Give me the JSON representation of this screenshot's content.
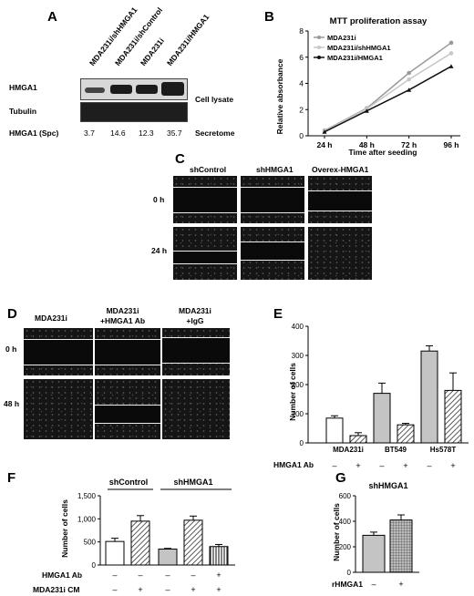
{
  "panelA": {
    "letter": "A",
    "lanes": [
      "MDA231i/shHMGA1",
      "MDA231i/shControl",
      "MDA231i",
      "MDA231i/HMGA1"
    ],
    "row1_label": "HMGA1",
    "row2_label": "Tubulin",
    "right1": "Cell lysate",
    "spc_label": "HMGA1 (Spc)",
    "spc_values": [
      "3.7",
      "14.6",
      "12.3",
      "35.7"
    ],
    "right2": "Secretome"
  },
  "panelB": {
    "letter": "B",
    "title": "MTT proliferation assay",
    "ylabel": "Relative absorbance",
    "xlabel": "Time after seeding",
    "legend": [
      "MDA231i",
      "MDA231i/shHMGA1",
      "MDA231i/HMGA1"
    ],
    "colors": [
      "#9a9a9a",
      "#c8c8c8",
      "#111111"
    ]
  },
  "panelC": {
    "letter": "C",
    "cols": [
      "shControl",
      "shHMGA1",
      "Overex-HMGA1"
    ],
    "rows": [
      "0 h",
      "24 h"
    ]
  },
  "panelD": {
    "letter": "D",
    "cols": [
      "MDA231i",
      "MDA231i\n+HMGA1 Ab",
      "MDA231i\n+IgG"
    ],
    "rows": [
      "0 h",
      "48 h"
    ]
  },
  "panelE": {
    "letter": "E",
    "ylabel": "Number of cells",
    "xlabel_row": "HMGA1 Ab",
    "groups": [
      "MDA231i",
      "BT549",
      "Hs578T"
    ],
    "signs": [
      "–",
      "+",
      "–",
      "+",
      "–",
      "+"
    ]
  },
  "panelF": {
    "letter": "F",
    "ylabel": "Number of cells",
    "group_labels": [
      "shControl",
      "shHMGA1"
    ],
    "row1_label": "HMGA1 Ab",
    "row2_label": "MDA231i CM",
    "row1_signs": [
      "–",
      "–",
      "–",
      "–",
      "+"
    ],
    "row2_signs": [
      "–",
      "+",
      "–",
      "+",
      "+"
    ]
  },
  "panelG": {
    "letter": "G",
    "title": "shHMGA1",
    "ylabel": "Number of cells",
    "xrow_label": "rHMGA1",
    "signs": [
      "–",
      "+"
    ]
  },
  "chart_data": [
    {
      "id": "B",
      "type": "line",
      "title": "MTT proliferation assay",
      "xlabel": "Time after seeding",
      "ylabel": "Relative absorbance",
      "x": [
        "24 h",
        "48 h",
        "72 h",
        "96 h"
      ],
      "ylim": [
        0,
        8
      ],
      "yticks": [
        0,
        2,
        4,
        6,
        8
      ],
      "legend_position": "top-left",
      "series": [
        {
          "name": "MDA231i",
          "values": [
            0.4,
            2.1,
            4.8,
            7.1
          ]
        },
        {
          "name": "MDA231i/shHMGA1",
          "values": [
            0.35,
            2.05,
            4.3,
            6.3
          ]
        },
        {
          "name": "MDA231i/HMGA1",
          "values": [
            0.3,
            1.9,
            3.5,
            5.3
          ]
        }
      ]
    },
    {
      "id": "E",
      "type": "bar",
      "ylabel": "Number of cells",
      "ylim": [
        0,
        400
      ],
      "yticks": [
        0,
        100,
        200,
        300,
        400
      ],
      "values": [
        85,
        25,
        170,
        62,
        315,
        180
      ],
      "errors": [
        8,
        10,
        35,
        5,
        18,
        60
      ],
      "fills": [
        "white",
        "hatch",
        "gray",
        "hatch",
        "gray",
        "hatch"
      ]
    },
    {
      "id": "F",
      "type": "bar",
      "ylabel": "Number of cells",
      "ylim": [
        0,
        1500
      ],
      "yticks": [
        0,
        500,
        1000,
        1500
      ],
      "ytick_labels": [
        "0",
        "500",
        "1,000",
        "1,500"
      ],
      "values": [
        510,
        950,
        345,
        970,
        400
      ],
      "errors": [
        70,
        120,
        15,
        90,
        45
      ],
      "fills": [
        "white",
        "hatch",
        "gray",
        "hatch",
        "vhatch"
      ]
    },
    {
      "id": "G",
      "type": "bar",
      "title": "shHMGA1",
      "ylabel": "Number of cells",
      "ylim": [
        0,
        600
      ],
      "yticks": [
        0,
        200,
        400,
        600
      ],
      "values": [
        290,
        410
      ],
      "errors": [
        25,
        40
      ],
      "fills": [
        "gray",
        "grid"
      ]
    }
  ]
}
